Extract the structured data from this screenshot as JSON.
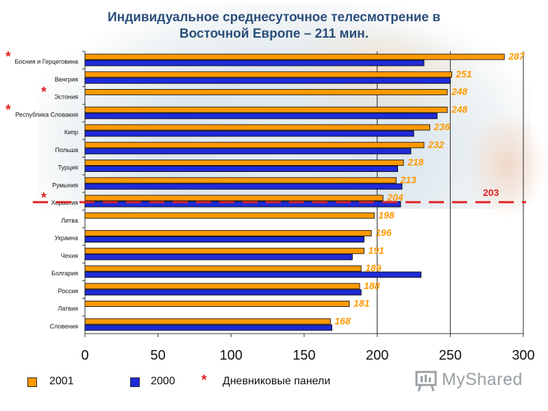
{
  "title_line1": "Индивидуальное среднесуточное телесмотрение в",
  "title_line2": "Восточной Европе – 211 мин.",
  "chart_data": {
    "type": "bar",
    "orientation": "horizontal",
    "categories": [
      "Босния и Герцеговина",
      "Венгрия",
      "Эстония",
      "Республика Словакия",
      "Кипр",
      "Польша",
      "Турция",
      "Румыния",
      "Хорватия",
      "Литва",
      "Украина",
      "Чехия",
      "Болгария",
      "Россия",
      "Латвия",
      "Словения"
    ],
    "starred": [
      true,
      false,
      true,
      true,
      false,
      false,
      false,
      false,
      true,
      false,
      false,
      false,
      false,
      false,
      false,
      false
    ],
    "series": [
      {
        "name": "2001",
        "color": "#ff9900",
        "values": [
          287,
          251,
          248,
          248,
          236,
          232,
          218,
          213,
          204,
          198,
          196,
          191,
          189,
          188,
          181,
          168
        ]
      },
      {
        "name": "2000",
        "color": "#1f2bd9",
        "values": [
          232,
          250,
          null,
          241,
          225,
          223,
          214,
          217,
          216,
          null,
          191,
          183,
          230,
          189,
          null,
          169
        ]
      }
    ],
    "value_labels": [
      "287",
      "251",
      "248",
      "248",
      "236",
      "232",
      "218",
      "213",
      "204",
      "198",
      "196",
      "191",
      "189",
      "188",
      "181",
      "168"
    ],
    "xlim": [
      0,
      300
    ],
    "xticks": [
      0,
      50,
      100,
      150,
      200,
      250,
      300
    ],
    "reference_line": {
      "value": 203,
      "label": "203",
      "color": "#e02020"
    },
    "gridlines": [
      200,
      250,
      300
    ]
  },
  "legend": {
    "item_2001": "2001",
    "item_2000": "2000",
    "star": "*",
    "note": "Дневниковые панели"
  },
  "logo": {
    "text": "MyShared"
  }
}
